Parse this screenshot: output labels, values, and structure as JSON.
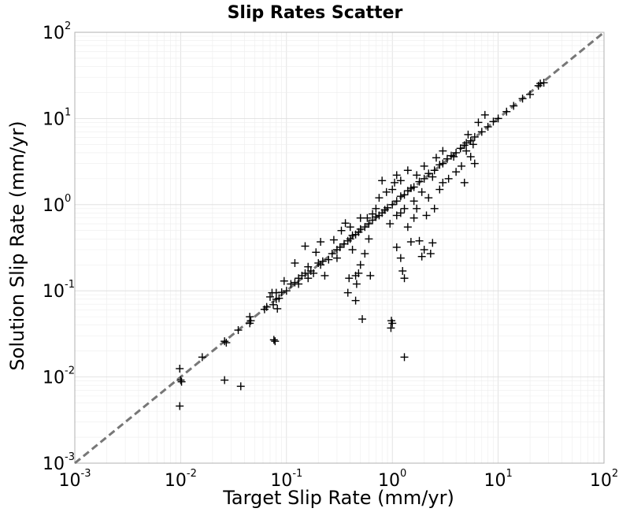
{
  "chart_data": {
    "type": "scatter",
    "title": "Slip Rates Scatter",
    "xlabel": "Target Slip Rate (mm/yr)",
    "ylabel": "Solution Slip Rate (mm/yr)",
    "xscale": "log",
    "yscale": "log",
    "xlim": [
      0.001,
      100
    ],
    "ylim": [
      0.001,
      100
    ],
    "x_ticks": [
      {
        "base": "10",
        "exp": "-3",
        "value": 0.001
      },
      {
        "base": "10",
        "exp": "-2",
        "value": 0.01
      },
      {
        "base": "10",
        "exp": "-1",
        "value": 0.1
      },
      {
        "base": "10",
        "exp": "0",
        "value": 1
      },
      {
        "base": "10",
        "exp": "1",
        "value": 10
      },
      {
        "base": "10",
        "exp": "2",
        "value": 100
      }
    ],
    "y_ticks": [
      {
        "base": "10",
        "exp": "-3",
        "value": 0.001
      },
      {
        "base": "10",
        "exp": "-2",
        "value": 0.01
      },
      {
        "base": "10",
        "exp": "-1",
        "value": 0.1
      },
      {
        "base": "10",
        "exp": "0",
        "value": 1
      },
      {
        "base": "10",
        "exp": "1",
        "value": 10
      },
      {
        "base": "10",
        "exp": "2",
        "value": 100
      }
    ],
    "grid": true,
    "marker": "plus",
    "marker_color": "#000000",
    "reference_line": {
      "style": "dashed",
      "color": "#777777",
      "from": [
        0.001,
        0.001
      ],
      "to": [
        100,
        100
      ]
    },
    "points": [
      [
        0.01,
        0.0092
      ],
      [
        0.0098,
        0.0125
      ],
      [
        0.0098,
        0.0046
      ],
      [
        0.0102,
        0.0088
      ],
      [
        0.016,
        0.017
      ],
      [
        0.026,
        0.0092
      ],
      [
        0.026,
        0.026
      ],
      [
        0.027,
        0.025
      ],
      [
        0.037,
        0.0078
      ],
      [
        0.035,
        0.035
      ],
      [
        0.045,
        0.042
      ],
      [
        0.045,
        0.05
      ],
      [
        0.046,
        0.045
      ],
      [
        0.062,
        0.061
      ],
      [
        0.065,
        0.065
      ],
      [
        0.076,
        0.027
      ],
      [
        0.078,
        0.026
      ],
      [
        0.082,
        0.062
      ],
      [
        0.08,
        0.08
      ],
      [
        0.085,
        0.082
      ],
      [
        0.075,
        0.069
      ],
      [
        0.073,
        0.095
      ],
      [
        0.09,
        0.096
      ],
      [
        0.1,
        0.1
      ],
      [
        0.11,
        0.12
      ],
      [
        0.12,
        0.125
      ],
      [
        0.13,
        0.14
      ],
      [
        0.14,
        0.15
      ],
      [
        0.15,
        0.16
      ],
      [
        0.17,
        0.17
      ],
      [
        0.16,
        0.19
      ],
      [
        0.2,
        0.21
      ],
      [
        0.21,
        0.2
      ],
      [
        0.22,
        0.22
      ],
      [
        0.25,
        0.23
      ],
      [
        0.27,
        0.27
      ],
      [
        0.3,
        0.3
      ],
      [
        0.32,
        0.32
      ],
      [
        0.35,
        0.35
      ],
      [
        0.38,
        0.38
      ],
      [
        0.4,
        0.4
      ],
      [
        0.42,
        0.44
      ],
      [
        0.45,
        0.45
      ],
      [
        0.48,
        0.48
      ],
      [
        0.5,
        0.52
      ],
      [
        0.55,
        0.55
      ],
      [
        0.6,
        0.6
      ],
      [
        0.65,
        0.66
      ],
      [
        0.7,
        0.72
      ],
      [
        0.75,
        0.75
      ],
      [
        0.8,
        0.8
      ],
      [
        0.85,
        0.87
      ],
      [
        0.9,
        0.92
      ],
      [
        1.0,
        1.0
      ],
      [
        1.1,
        1.1
      ],
      [
        1.2,
        1.25
      ],
      [
        1.3,
        1.3
      ],
      [
        1.4,
        1.45
      ],
      [
        1.5,
        1.55
      ],
      [
        1.6,
        1.6
      ],
      [
        1.8,
        1.85
      ],
      [
        2.0,
        2.0
      ],
      [
        2.2,
        2.3
      ],
      [
        2.5,
        2.5
      ],
      [
        2.8,
        2.9
      ],
      [
        3.0,
        3.0
      ],
      [
        3.3,
        3.4
      ],
      [
        3.6,
        3.7
      ],
      [
        4.0,
        4.0
      ],
      [
        4.4,
        4.5
      ],
      [
        4.8,
        4.9
      ],
      [
        5.0,
        5.2
      ],
      [
        5.5,
        5.5
      ],
      [
        6.0,
        6.1
      ],
      [
        7.0,
        7.0
      ],
      [
        8.0,
        8.0
      ],
      [
        9.0,
        9.2
      ],
      [
        10.0,
        10.0
      ],
      [
        12.0,
        12.0
      ],
      [
        14.0,
        14.0
      ],
      [
        17.0,
        17.0
      ],
      [
        20.0,
        19.0
      ],
      [
        24.0,
        24.0
      ],
      [
        25.0,
        25.5
      ],
      [
        27.0,
        26.0
      ],
      [
        0.21,
        0.37
      ],
      [
        0.36,
        0.61
      ],
      [
        0.23,
        0.15
      ],
      [
        0.15,
        0.33
      ],
      [
        0.4,
        0.55
      ],
      [
        0.5,
        0.7
      ],
      [
        0.3,
        0.24
      ],
      [
        0.42,
        0.3
      ],
      [
        0.6,
        0.4
      ],
      [
        0.55,
        0.27
      ],
      [
        0.5,
        0.2
      ],
      [
        0.45,
        0.15
      ],
      [
        0.46,
        0.12
      ],
      [
        0.48,
        0.16
      ],
      [
        0.62,
        0.15
      ],
      [
        0.39,
        0.14
      ],
      [
        0.38,
        0.095
      ],
      [
        0.45,
        0.077
      ],
      [
        0.52,
        0.047
      ],
      [
        0.98,
        0.045
      ],
      [
        0.97,
        0.037
      ],
      [
        1.0,
        0.042
      ],
      [
        1.3,
        0.017
      ],
      [
        1.2,
        0.24
      ],
      [
        1.25,
        0.17
      ],
      [
        1.3,
        0.14
      ],
      [
        1.1,
        0.32
      ],
      [
        1.5,
        0.37
      ],
      [
        2.0,
        0.3
      ],
      [
        1.9,
        0.25
      ],
      [
        2.3,
        0.27
      ],
      [
        2.4,
        0.36
      ],
      [
        1.8,
        0.38
      ],
      [
        1.4,
        0.55
      ],
      [
        1.6,
        0.7
      ],
      [
        1.2,
        0.8
      ],
      [
        0.95,
        0.6
      ],
      [
        1.1,
        0.75
      ],
      [
        1.3,
        0.9
      ],
      [
        1.7,
        0.9
      ],
      [
        2.1,
        0.75
      ],
      [
        2.5,
        0.9
      ],
      [
        2.2,
        1.2
      ],
      [
        2.8,
        1.5
      ],
      [
        3.0,
        1.8
      ],
      [
        3.4,
        2.0
      ],
      [
        4.0,
        2.4
      ],
      [
        4.5,
        2.8
      ],
      [
        3.8,
        3.6
      ],
      [
        1.0,
        1.5
      ],
      [
        1.2,
        1.9
      ],
      [
        0.75,
        1.2
      ],
      [
        0.7,
        0.9
      ],
      [
        0.88,
        1.4
      ],
      [
        1.05,
        1.8
      ],
      [
        1.4,
        2.5
      ],
      [
        1.7,
        2.2
      ],
      [
        2.0,
        2.8
      ],
      [
        2.6,
        3.5
      ],
      [
        3.0,
        4.2
      ],
      [
        1.1,
        2.2
      ],
      [
        1.6,
        1.1
      ],
      [
        5.2,
        6.5
      ],
      [
        5.8,
        5.0
      ],
      [
        6.5,
        9.0
      ],
      [
        7.5,
        11.0
      ],
      [
        5.5,
        3.6
      ],
      [
        4.8,
        1.8
      ],
      [
        6.0,
        3.0
      ],
      [
        5.0,
        4.2
      ],
      [
        0.33,
        0.5
      ],
      [
        0.28,
        0.39
      ],
      [
        0.19,
        0.28
      ],
      [
        0.12,
        0.21
      ],
      [
        0.095,
        0.13
      ],
      [
        0.13,
        0.12
      ],
      [
        0.16,
        0.14
      ],
      [
        0.18,
        0.16
      ],
      [
        0.08,
        0.095
      ],
      [
        0.07,
        0.085
      ],
      [
        0.8,
        1.9
      ],
      [
        0.65,
        0.78
      ],
      [
        0.58,
        0.7
      ],
      [
        1.9,
        1.4
      ],
      [
        2.4,
        2.1
      ]
    ]
  }
}
